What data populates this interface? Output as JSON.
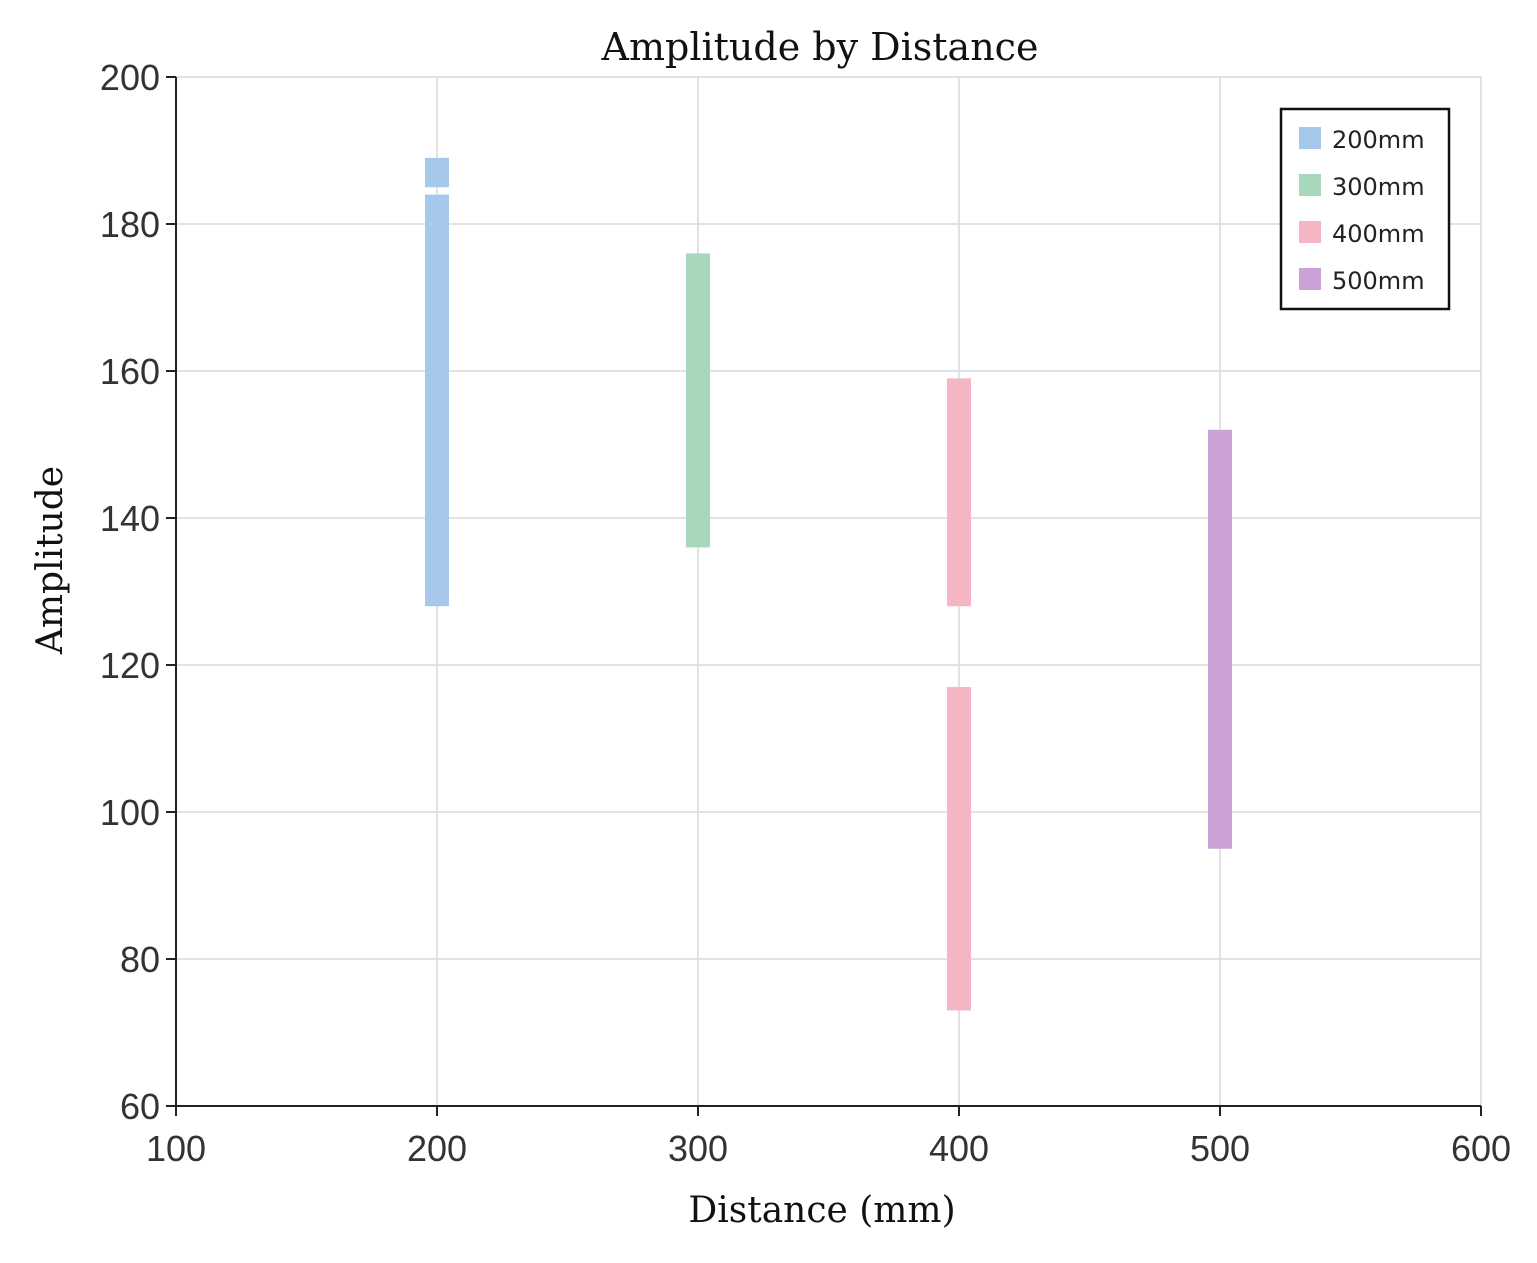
{
  "chart_data": {
    "type": "bar",
    "title": "Amplitude  by Distance",
    "xlabel": "Distance (mm)",
    "ylabel": "Amplitude",
    "xlim": [
      100,
      600
    ],
    "ylim": [
      60,
      200
    ],
    "xticks": [
      100,
      200,
      300,
      400,
      500,
      600
    ],
    "yticks": [
      60,
      80,
      100,
      120,
      140,
      160,
      180,
      200
    ],
    "grid": true,
    "legend_position": "top-right",
    "series": [
      {
        "name": "200mm",
        "color": "#a6c8ec",
        "x": 200,
        "ranges": [
          [
            128,
            184
          ],
          [
            185,
            189
          ]
        ]
      },
      {
        "name": "300mm",
        "color": "#a8d8bb",
        "x": 300,
        "ranges": [
          [
            136,
            176
          ]
        ]
      },
      {
        "name": "400mm",
        "color": "#f4b6c2",
        "x": 400,
        "ranges": [
          [
            128,
            159
          ],
          [
            73,
            117
          ]
        ]
      },
      {
        "name": "500mm",
        "color": "#cba2d6",
        "x": 500,
        "ranges": [
          [
            95,
            152
          ]
        ]
      }
    ]
  }
}
